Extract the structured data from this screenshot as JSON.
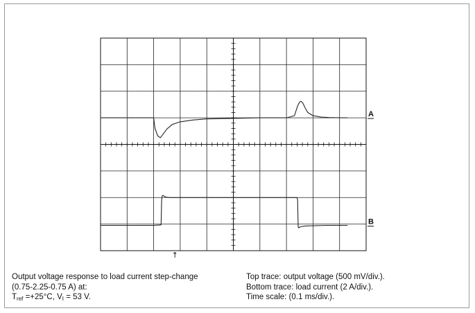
{
  "chart_data": {
    "type": "line",
    "title": "",
    "divisions": {
      "x": 10,
      "y": 8
    },
    "grid": true,
    "trace_markers": [
      "A",
      "B"
    ],
    "trigger_marker": "↑",
    "series": [
      {
        "marker": "A",
        "x": [
          0.0,
          2.0,
          2.05,
          2.15,
          2.25,
          2.35,
          2.5,
          2.7,
          3.0,
          3.5,
          4.0,
          5.0,
          6.0,
          7.0,
          7.3,
          7.42,
          7.5,
          7.55,
          7.62,
          7.7,
          7.8,
          8.0,
          8.3,
          8.6,
          9.0,
          9.3
        ],
        "y": [
          5.0,
          5.0,
          4.6,
          4.33,
          4.25,
          4.38,
          4.58,
          4.75,
          4.85,
          4.92,
          4.96,
          4.98,
          5.0,
          5.0,
          5.08,
          5.45,
          5.6,
          5.62,
          5.55,
          5.38,
          5.2,
          5.08,
          5.03,
          5.01,
          5.0,
          5.0
        ]
      },
      {
        "marker": "B",
        "x": [
          0.0,
          2.0,
          2.28,
          2.3,
          2.32,
          2.35,
          2.45,
          2.6,
          5.0,
          7.0,
          7.4,
          7.42,
          7.44,
          7.46,
          7.52,
          7.7,
          8.5,
          9.0,
          9.3
        ],
        "y": [
          0.95,
          0.95,
          0.97,
          1.9,
          2.06,
          2.08,
          2.02,
          2.0,
          2.0,
          2.0,
          2.0,
          1.9,
          0.9,
          0.86,
          0.9,
          0.93,
          0.95,
          0.95,
          0.95
        ]
      }
    ]
  },
  "caption": {
    "left_line1": "Output voltage response to load current step-change",
    "left_line2": "(0.75-2.25-0.75 A) at:",
    "t_symbol": "T",
    "t_sub": "ref",
    "t_value": " =+25°C, V",
    "v_sub": "I",
    "v_value": " = 53 V.",
    "right_line1": "Top trace: output voltage (500 mV/div.).",
    "right_line2": "Bottom trace: load current (2 A/div.).",
    "right_line3": "Time scale: (0.1 ms/div.)."
  }
}
